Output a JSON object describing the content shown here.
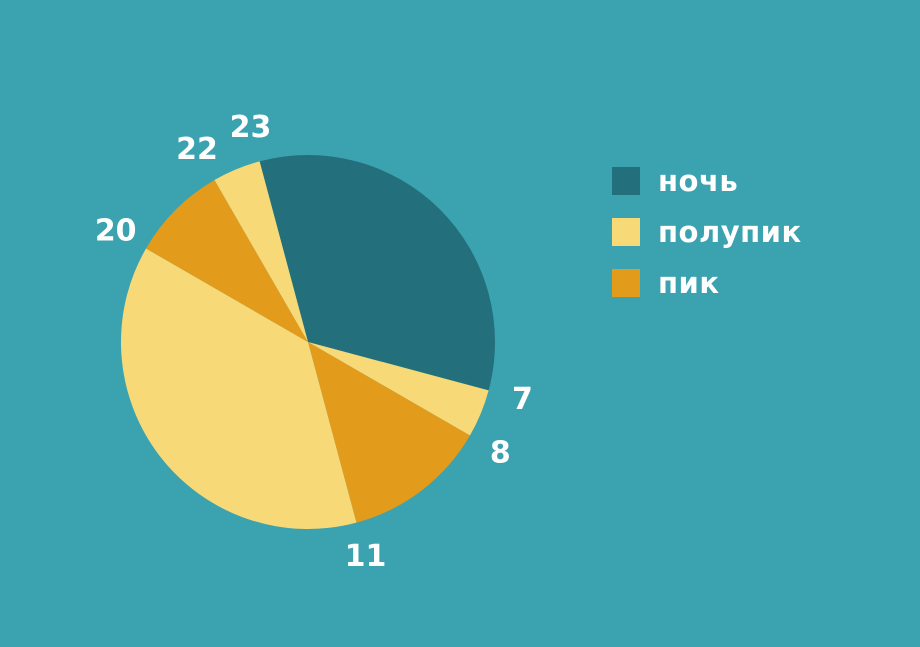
{
  "colors": {
    "background": "#3ba2b0",
    "night": "#236f7b",
    "semipeak": "#f7da77",
    "peak": "#e29b1b",
    "text": "#ffffff"
  },
  "legend": {
    "items": [
      {
        "label": "ночь",
        "color": "#236f7b"
      },
      {
        "label": "полупик",
        "color": "#f7da77"
      },
      {
        "label": "пик",
        "color": "#e29b1b"
      }
    ]
  },
  "chart_data": {
    "type": "pie",
    "title": "",
    "unit": "hours",
    "slices": [
      {
        "category": "ночь",
        "from": 23,
        "to": 7,
        "value": 8,
        "color": "#236f7b"
      },
      {
        "category": "полупик",
        "from": 7,
        "to": 8,
        "value": 1,
        "color": "#f7da77"
      },
      {
        "category": "пик",
        "from": 8,
        "to": 11,
        "value": 3,
        "color": "#e29b1b"
      },
      {
        "category": "полупик",
        "from": 11,
        "to": 20,
        "value": 9,
        "color": "#f7da77"
      },
      {
        "category": "пик",
        "from": 20,
        "to": 22,
        "value": 2,
        "color": "#e29b1b"
      },
      {
        "category": "полупик",
        "from": 22,
        "to": 23,
        "value": 1,
        "color": "#f7da77"
      }
    ],
    "boundary_labels": [
      "7",
      "8",
      "11",
      "20",
      "22",
      "23"
    ],
    "legend_position": "right"
  }
}
